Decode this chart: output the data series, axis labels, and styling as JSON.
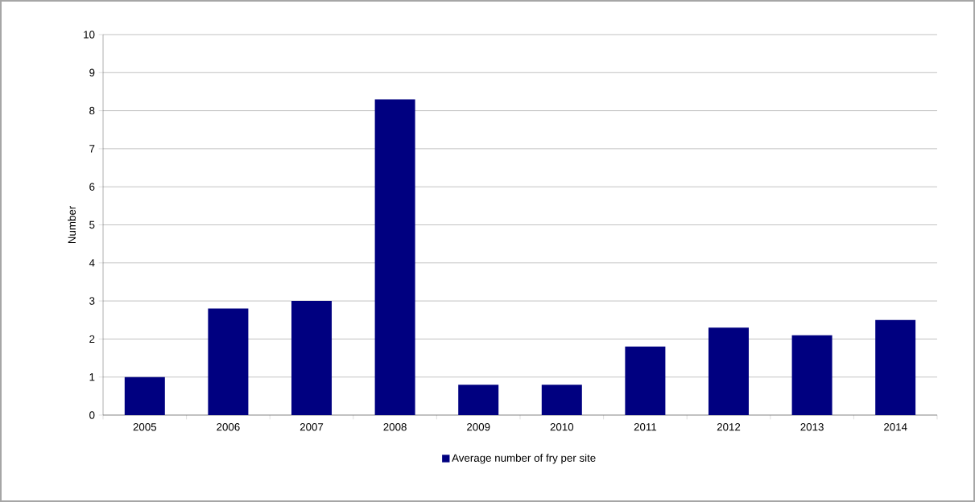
{
  "chart_data": {
    "type": "bar",
    "ylabel": "Number",
    "categories": [
      "2005",
      "2006",
      "2007",
      "2008",
      "2009",
      "2010",
      "2011",
      "2012",
      "2013",
      "2014"
    ],
    "series": [
      {
        "name": "Average number of fry per site",
        "color": "#000080",
        "values": [
          1.0,
          2.8,
          3.0,
          8.3,
          0.8,
          0.8,
          1.8,
          2.3,
          2.1,
          2.5
        ]
      }
    ],
    "ylim": [
      0,
      10
    ],
    "yticks": [
      0,
      1,
      2,
      3,
      4,
      5,
      6,
      7,
      8,
      9,
      10
    ],
    "grid": "y",
    "legend": "bottom"
  }
}
